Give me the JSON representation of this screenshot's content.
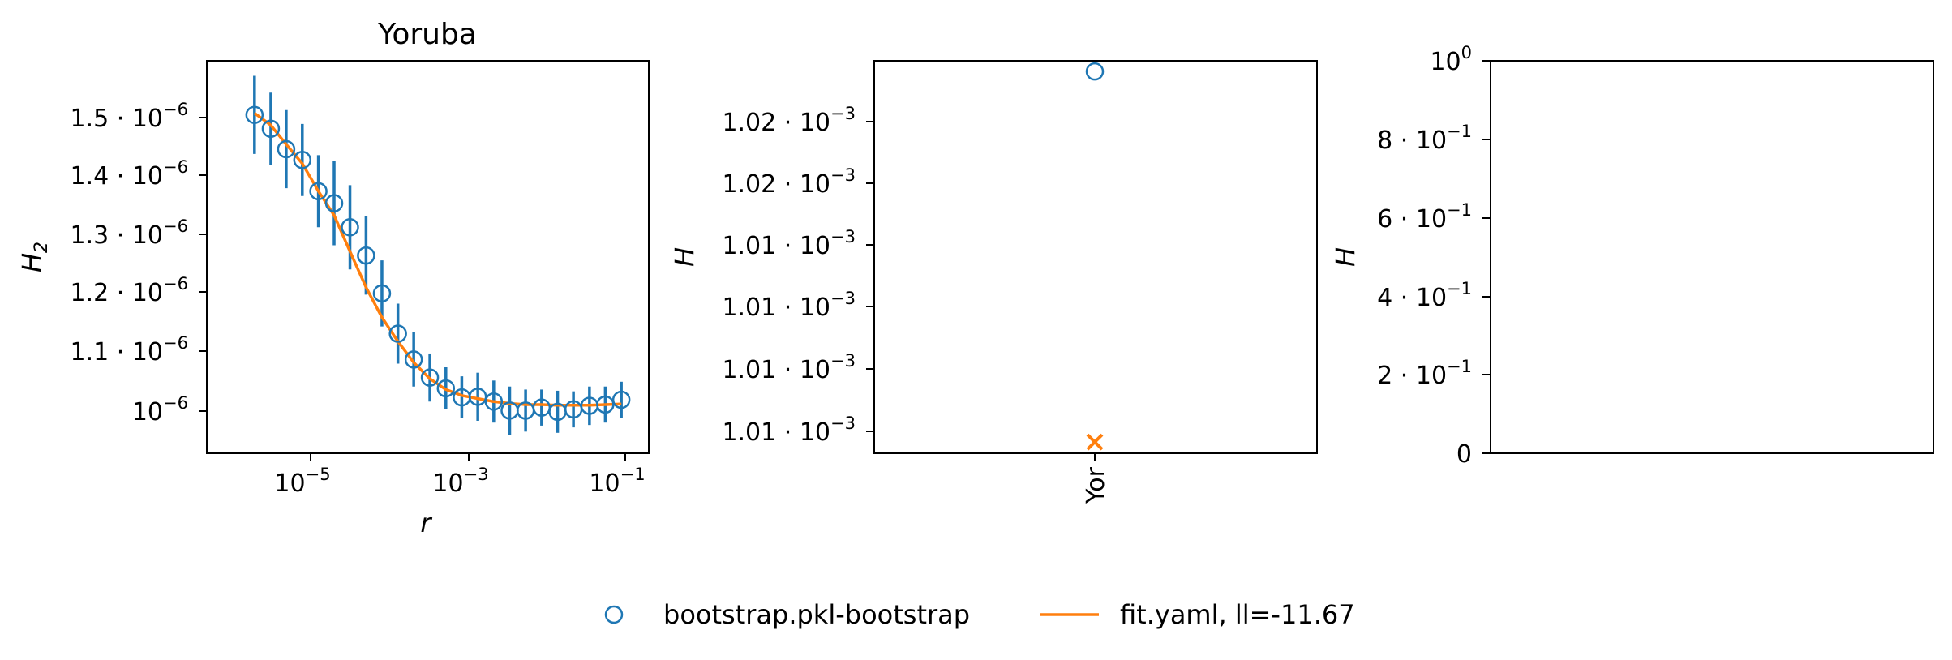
{
  "colors": {
    "bootstrap": "#1f77b4",
    "fit": "#ff7f0e"
  },
  "legend": {
    "location": "bottom-center",
    "entries": [
      {
        "label": "bootstrap.pkl-bootstrap",
        "marker": "open-circle",
        "color": "#1f77b4"
      },
      {
        "label": "fit.yaml, ll=-11.67",
        "marker": "line",
        "color": "#ff7f0e"
      }
    ]
  },
  "chart_data": [
    {
      "type": "scatter",
      "title": "Yoruba",
      "xlabel": "r",
      "ylabel": "H",
      "ylabel_sub": "2",
      "x_scale": "log",
      "xlim": [
        3.2e-07,
        0.14
      ],
      "ylim": [
        9.34e-07,
        1.587e-06
      ],
      "x_ticks": [
        {
          "label": "10",
          "sup": "−5"
        },
        {
          "label": "10",
          "sup": "−3"
        },
        {
          "label": "10",
          "sup": "−1"
        }
      ],
      "y_ticks": [
        {
          "label": "1.5 · 10",
          "sup": "−6"
        },
        {
          "label": "1.4 · 10",
          "sup": "−6"
        },
        {
          "label": "1.3 · 10",
          "sup": "−6"
        },
        {
          "label": "1.2 · 10",
          "sup": "−6"
        },
        {
          "label": "1.1 · 10",
          "sup": "−6"
        },
        {
          "label": "10",
          "sup": "−6"
        }
      ],
      "grid": false,
      "series": [
        {
          "name": "bootstrap.pkl-bootstrap",
          "marker": "open-circle",
          "x": [
            1.3e-06,
            2.1e-06,
            3.3e-06,
            5.3e-06,
            8.5e-06,
            1.35e-05,
            2.15e-05,
            3.45e-05,
            5.5e-05,
            8.8e-05,
            0.00014,
            0.000225,
            0.00036,
            0.000575,
            0.00092,
            0.00147,
            0.00235,
            0.00375,
            0.006,
            0.0096,
            0.0153,
            0.0245,
            0.039,
            0.0625
          ],
          "y": [
            1.497e-06,
            1.474e-06,
            1.44e-06,
            1.422e-06,
            1.37e-06,
            1.35e-06,
            1.31e-06,
            1.263e-06,
            1.2e-06,
            1.133e-06,
            1.09e-06,
            1.06e-06,
            1.042e-06,
            1.027e-06,
            1.028e-06,
            1.02e-06,
            1.005e-06,
            1.005e-06,
            1.01e-06,
            1.003e-06,
            1.007e-06,
            1.013e-06,
            1.015e-06,
            1.023e-06
          ],
          "err": [
            6.5e-08,
            6e-08,
            6.5e-08,
            6e-08,
            6e-08,
            7e-08,
            7e-08,
            6.5e-08,
            5.5e-08,
            5e-08,
            4.5e-08,
            4e-08,
            3.5e-08,
            3.5e-08,
            4e-08,
            3.5e-08,
            4e-08,
            3.5e-08,
            3e-08,
            3.5e-08,
            3e-08,
            3.2e-08,
            3e-08,
            3e-08
          ]
        },
        {
          "name": "fit.yaml, ll=-11.67",
          "marker": "line",
          "x": [
            1.3e-06,
            2.1e-06,
            3.3e-06,
            5.3e-06,
            8.5e-06,
            1.35e-05,
            2.15e-05,
            3.45e-05,
            5.5e-05,
            8.8e-05,
            0.00014,
            0.000225,
            0.00036,
            0.000575,
            0.00092,
            0.00147,
            0.00235,
            0.00375,
            0.006,
            0.0096,
            0.0153,
            0.0245,
            0.039,
            0.0625
          ],
          "y": [
            1.5e-06,
            1.48e-06,
            1.448e-06,
            1.416e-06,
            1.37e-06,
            1.33e-06,
            1.27e-06,
            1.21e-06,
            1.16e-06,
            1.12e-06,
            1.085e-06,
            1.058e-06,
            1.04e-06,
            1.03e-06,
            1.025e-06,
            1.02e-06,
            1.017e-06,
            1.015e-06,
            1.015e-06,
            1.014e-06,
            1.014e-06,
            1.014e-06,
            1.015e-06,
            1.016e-06
          ]
        }
      ]
    },
    {
      "type": "scatter",
      "title": "",
      "xlabel": "",
      "ylabel": "H",
      "categories": [
        "Yor"
      ],
      "ylim": [
        0.00100962,
        0.00102286
      ],
      "y_ticks": [
        {
          "label": "1.02 · 10",
          "sup": "−3"
        },
        {
          "label": "1.02 · 10",
          "sup": "−3"
        },
        {
          "label": "1.01 · 10",
          "sup": "−3"
        },
        {
          "label": "1.01 · 10",
          "sup": "−3"
        },
        {
          "label": "1.01 · 10",
          "sup": "−3"
        },
        {
          "label": "1.01 · 10",
          "sup": "−3"
        }
      ],
      "grid": false,
      "series": [
        {
          "name": "bootstrap.pkl-bootstrap",
          "marker": "open-circle",
          "values": [
            0.0010225
          ]
        },
        {
          "name": "fit.yaml, ll=-11.67",
          "marker": "x",
          "values": [
            0.00101
          ]
        }
      ]
    },
    {
      "type": "scatter",
      "title": "",
      "xlabel": "",
      "ylabel": "H",
      "ylim": [
        0,
        1
      ],
      "y_ticks": [
        {
          "label": "10",
          "sup": "0"
        },
        {
          "label": "8 · 10",
          "sup": "−1"
        },
        {
          "label": "6 · 10",
          "sup": "−1"
        },
        {
          "label": "4 · 10",
          "sup": "−1"
        },
        {
          "label": "2 · 10",
          "sup": "−1"
        },
        {
          "label": "0",
          "sup": ""
        }
      ],
      "grid": false,
      "series": []
    }
  ]
}
